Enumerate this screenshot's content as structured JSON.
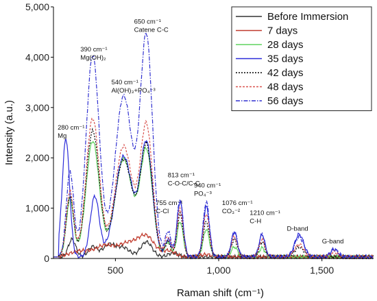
{
  "chart_data": {
    "type": "line",
    "xlabel": "Raman shift (cm⁻¹)",
    "ylabel": "Intensity (a.u.)",
    "xlim": [
      200,
      1750
    ],
    "ylim": [
      0,
      5000
    ],
    "xticks": [
      {
        "v": 500,
        "label": "500"
      },
      {
        "v": 1000,
        "label": "1,000"
      },
      {
        "v": 1500,
        "label": "1,500"
      }
    ],
    "yticks": [
      {
        "v": 0,
        "label": "0"
      },
      {
        "v": 1000,
        "label": "1,000"
      },
      {
        "v": 2000,
        "label": "2,000"
      },
      {
        "v": 3000,
        "label": "3,000"
      },
      {
        "v": 4000,
        "label": "4,000"
      },
      {
        "v": 5000,
        "label": "5,000"
      }
    ],
    "legend_position": "top-right",
    "grid": false,
    "peak_annotations": [
      {
        "x": 280,
        "y": 2400,
        "lines": [
          "280 cm⁻¹",
          "Mg"
        ]
      },
      {
        "x": 390,
        "y": 3950,
        "lines": [
          "390 cm⁻¹",
          "Mg(OH)₂"
        ]
      },
      {
        "x": 540,
        "y": 3300,
        "lines": [
          "540 cm⁻¹",
          "Al(OH)₃+PO₄⁻³"
        ]
      },
      {
        "x": 650,
        "y": 4500,
        "lines": [
          "650 cm⁻¹",
          "Catene C-C"
        ]
      },
      {
        "x": 755,
        "y": 900,
        "lines": [
          "755 cm⁻¹",
          "C-Cl"
        ]
      },
      {
        "x": 813,
        "y": 1450,
        "lines": [
          "813 cm⁻¹",
          "C-O-C/C-C"
        ]
      },
      {
        "x": 940,
        "y": 1250,
        "lines": [
          "940 cm⁻¹",
          "PO₄⁻³"
        ]
      },
      {
        "x": 1076,
        "y": 900,
        "lines": [
          "1076 cm⁻¹",
          "CO₃⁻²"
        ]
      },
      {
        "x": 1210,
        "y": 700,
        "lines": [
          "1210 cm⁻¹",
          "C-H"
        ]
      },
      {
        "x": 1390,
        "y": 550,
        "lines": [
          "D-band"
        ]
      },
      {
        "x": 1560,
        "y": 300,
        "lines": [
          "G-band"
        ]
      }
    ],
    "series": [
      {
        "name": "Before Immersion",
        "color": "#333333",
        "dash": "",
        "peaks": [
          [
            290,
            350,
            18
          ],
          [
            390,
            200,
            22
          ],
          [
            470,
            250,
            30
          ],
          [
            540,
            180,
            30
          ],
          [
            650,
            300,
            28
          ],
          [
            780,
            80,
            25
          ]
        ]
      },
      {
        "name": "7 days",
        "color": "#c0392b",
        "dash": "",
        "peaks": [
          [
            330,
            120,
            50
          ],
          [
            450,
            220,
            45
          ],
          [
            560,
            260,
            45
          ],
          [
            650,
            400,
            40
          ],
          [
            760,
            120,
            30
          ],
          [
            940,
            50,
            25
          ]
        ]
      },
      {
        "name": "28 days",
        "color": "#5fd35f",
        "dash": "",
        "peaks": [
          [
            280,
            1150,
            18
          ],
          [
            390,
            2300,
            32
          ],
          [
            540,
            1950,
            42
          ],
          [
            650,
            2100,
            30
          ],
          [
            755,
            300,
            15
          ],
          [
            813,
            700,
            15
          ],
          [
            940,
            550,
            15
          ],
          [
            1076,
            200,
            15
          ],
          [
            1210,
            180,
            14
          ]
        ]
      },
      {
        "name": "35 days",
        "color": "#2b2bd9",
        "dash": "",
        "peaks": [
          [
            260,
            2350,
            18
          ],
          [
            400,
            1200,
            22
          ],
          [
            540,
            2000,
            42
          ],
          [
            650,
            2250,
            30
          ],
          [
            755,
            350,
            15
          ],
          [
            813,
            1100,
            15
          ],
          [
            940,
            1000,
            15
          ],
          [
            1076,
            500,
            14
          ],
          [
            1210,
            450,
            14
          ],
          [
            1390,
            450,
            22
          ],
          [
            1560,
            150,
            18
          ]
        ]
      },
      {
        "name": "42 days",
        "color": "#000000",
        "dash": "2,2",
        "peaks": [
          [
            280,
            1200,
            18
          ],
          [
            390,
            2500,
            32
          ],
          [
            540,
            1950,
            42
          ],
          [
            650,
            2200,
            30
          ],
          [
            755,
            300,
            15
          ],
          [
            813,
            850,
            15
          ],
          [
            940,
            700,
            15
          ],
          [
            1076,
            350,
            15
          ],
          [
            1210,
            300,
            14
          ],
          [
            1390,
            200,
            22
          ]
        ]
      },
      {
        "name": "48 days",
        "color": "#d9534f",
        "dash": "3,2",
        "peaks": [
          [
            280,
            1300,
            18
          ],
          [
            390,
            2750,
            32
          ],
          [
            540,
            2200,
            42
          ],
          [
            650,
            2600,
            30
          ],
          [
            755,
            400,
            15
          ],
          [
            813,
            950,
            15
          ],
          [
            940,
            850,
            15
          ],
          [
            1076,
            400,
            15
          ],
          [
            1210,
            350,
            14
          ],
          [
            1390,
            250,
            22
          ],
          [
            1560,
            100,
            18
          ]
        ]
      },
      {
        "name": "56 days",
        "color": "#2f2fd0",
        "dash": "6,2,1.5,2",
        "peaks": [
          [
            280,
            1700,
            18
          ],
          [
            390,
            4000,
            32
          ],
          [
            540,
            3200,
            42
          ],
          [
            650,
            4350,
            30
          ],
          [
            755,
            500,
            15
          ],
          [
            813,
            1150,
            15
          ],
          [
            940,
            1100,
            15
          ],
          [
            1076,
            500,
            15
          ],
          [
            1210,
            450,
            14
          ],
          [
            1390,
            400,
            22
          ],
          [
            1560,
            150,
            18
          ]
        ]
      }
    ]
  }
}
